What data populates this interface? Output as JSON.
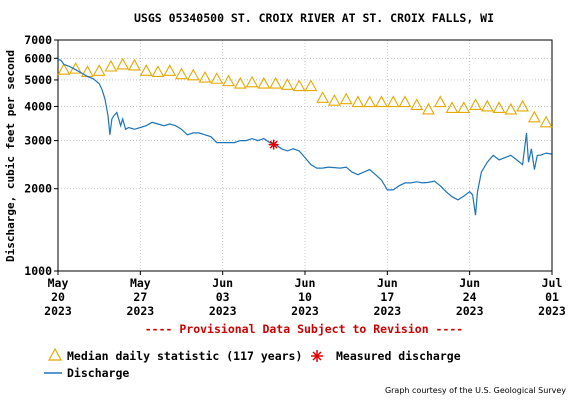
{
  "chart_data": {
    "type": "line",
    "title": "USGS 05340500 ST. CROIX RIVER AT ST. CROIX FALLS, WI",
    "ylabel": "Discharge, cubic feet per second",
    "xlabel": "",
    "y_scale": "log",
    "ylim": [
      1000,
      7000
    ],
    "xlim": [
      "2023-05-20",
      "2023-07-01"
    ],
    "y_ticks": [
      {
        "value": 1000,
        "label": "1000"
      },
      {
        "value": 2000,
        "label": "2000"
      },
      {
        "value": 3000,
        "label": "3000"
      },
      {
        "value": 4000,
        "label": "4000"
      },
      {
        "value": 5000,
        "label": "5000"
      },
      {
        "value": 6000,
        "label": "6000"
      },
      {
        "value": 7000,
        "label": "7000"
      }
    ],
    "x_ticks": [
      {
        "date": "2023-05-20",
        "label": [
          "May",
          "20",
          "2023"
        ]
      },
      {
        "date": "2023-05-27",
        "label": [
          "May",
          "27",
          "2023"
        ]
      },
      {
        "date": "2023-06-03",
        "label": [
          "Jun",
          "03",
          "2023"
        ]
      },
      {
        "date": "2023-06-10",
        "label": [
          "Jun",
          "10",
          "2023"
        ]
      },
      {
        "date": "2023-06-17",
        "label": [
          "Jun",
          "17",
          "2023"
        ]
      },
      {
        "date": "2023-06-24",
        "label": [
          "Jun",
          "24",
          "2023"
        ]
      },
      {
        "date": "2023-07-01",
        "label": [
          "Jul",
          "01",
          "2023"
        ]
      }
    ],
    "grid": true,
    "series": [
      {
        "name": "Median daily statistic (117 years)",
        "kind": "triangle-markers",
        "color": "#e6a800",
        "points": [
          [
            "2023-05-20",
            5450
          ],
          [
            "2023-05-21",
            5500
          ],
          [
            "2023-05-22",
            5350
          ],
          [
            "2023-05-23",
            5400
          ],
          [
            "2023-05-24",
            5600
          ],
          [
            "2023-05-25",
            5700
          ],
          [
            "2023-05-26",
            5650
          ],
          [
            "2023-05-27",
            5400
          ],
          [
            "2023-05-28",
            5350
          ],
          [
            "2023-05-29",
            5400
          ],
          [
            "2023-05-30",
            5250
          ],
          [
            "2023-05-31",
            5200
          ],
          [
            "2023-06-01",
            5100
          ],
          [
            "2023-06-02",
            5050
          ],
          [
            "2023-06-03",
            4950
          ],
          [
            "2023-06-04",
            4850
          ],
          [
            "2023-06-05",
            4900
          ],
          [
            "2023-06-06",
            4850
          ],
          [
            "2023-06-07",
            4850
          ],
          [
            "2023-06-08",
            4800
          ],
          [
            "2023-06-09",
            4750
          ],
          [
            "2023-06-10",
            4750
          ],
          [
            "2023-06-11",
            4300
          ],
          [
            "2023-06-12",
            4200
          ],
          [
            "2023-06-13",
            4250
          ],
          [
            "2023-06-14",
            4150
          ],
          [
            "2023-06-15",
            4150
          ],
          [
            "2023-06-16",
            4150
          ],
          [
            "2023-06-17",
            4150
          ],
          [
            "2023-06-18",
            4150
          ],
          [
            "2023-06-19",
            4050
          ],
          [
            "2023-06-20",
            3900
          ],
          [
            "2023-06-21",
            4150
          ],
          [
            "2023-06-22",
            3950
          ],
          [
            "2023-06-23",
            3950
          ],
          [
            "2023-06-24",
            4050
          ],
          [
            "2023-06-25",
            4000
          ],
          [
            "2023-06-26",
            3950
          ],
          [
            "2023-06-27",
            3900
          ],
          [
            "2023-06-28",
            4000
          ],
          [
            "2023-06-29",
            3650
          ],
          [
            "2023-06-30",
            3500
          ]
        ]
      },
      {
        "name": "Measured discharge",
        "kind": "star-marker",
        "color": "#e00000",
        "points": [
          [
            "2023-06-07T08:00",
            2900
          ]
        ]
      },
      {
        "name": "Discharge",
        "kind": "line",
        "color": "#1e74b8",
        "points": [
          [
            "2023-05-20T00:00",
            5950
          ],
          [
            "2023-05-20T06:00",
            5900
          ],
          [
            "2023-05-20T12:00",
            5700
          ],
          [
            "2023-05-21T00:00",
            5600
          ],
          [
            "2023-05-21T12:00",
            5450
          ],
          [
            "2023-05-22T00:00",
            5300
          ],
          [
            "2023-05-22T12:00",
            5150
          ],
          [
            "2023-05-23T00:00",
            5050
          ],
          [
            "2023-05-23T12:00",
            4850
          ],
          [
            "2023-05-23T18:00",
            4600
          ],
          [
            "2023-05-24T00:00",
            4250
          ],
          [
            "2023-05-24T06:00",
            3700
          ],
          [
            "2023-05-24T10:00",
            3150
          ],
          [
            "2023-05-24T14:00",
            3600
          ],
          [
            "2023-05-24T18:00",
            3700
          ],
          [
            "2023-05-25T00:00",
            3800
          ],
          [
            "2023-05-25T08:00",
            3400
          ],
          [
            "2023-05-25T12:00",
            3600
          ],
          [
            "2023-05-25T18:00",
            3300
          ],
          [
            "2023-05-26T00:00",
            3350
          ],
          [
            "2023-05-26T12:00",
            3300
          ],
          [
            "2023-05-27T00:00",
            3350
          ],
          [
            "2023-05-27T12:00",
            3400
          ],
          [
            "2023-05-28T00:00",
            3500
          ],
          [
            "2023-05-28T12:00",
            3450
          ],
          [
            "2023-05-29T00:00",
            3400
          ],
          [
            "2023-05-29T12:00",
            3450
          ],
          [
            "2023-05-30T00:00",
            3400
          ],
          [
            "2023-05-30T12:00",
            3300
          ],
          [
            "2023-05-31T00:00",
            3150
          ],
          [
            "2023-05-31T12:00",
            3200
          ],
          [
            "2023-06-01T00:00",
            3200
          ],
          [
            "2023-06-01T12:00",
            3150
          ],
          [
            "2023-06-02T00:00",
            3100
          ],
          [
            "2023-06-02T12:00",
            2950
          ],
          [
            "2023-06-03T00:00",
            2950
          ],
          [
            "2023-06-03T12:00",
            2950
          ],
          [
            "2023-06-04T00:00",
            2950
          ],
          [
            "2023-06-04T12:00",
            3000
          ],
          [
            "2023-06-05T00:00",
            3000
          ],
          [
            "2023-06-05T12:00",
            3050
          ],
          [
            "2023-06-06T00:00",
            3000
          ],
          [
            "2023-06-06T12:00",
            3050
          ],
          [
            "2023-06-07T00:00",
            2950
          ],
          [
            "2023-06-07T12:00",
            2900
          ],
          [
            "2023-06-08T00:00",
            2800
          ],
          [
            "2023-06-08T12:00",
            2750
          ],
          [
            "2023-06-09T00:00",
            2800
          ],
          [
            "2023-06-09T12:00",
            2750
          ],
          [
            "2023-06-10T00:00",
            2600
          ],
          [
            "2023-06-10T12:00",
            2450
          ],
          [
            "2023-06-11T00:00",
            2380
          ],
          [
            "2023-06-11T12:00",
            2380
          ],
          [
            "2023-06-12T00:00",
            2400
          ],
          [
            "2023-06-12T12:00",
            2390
          ],
          [
            "2023-06-13T00:00",
            2380
          ],
          [
            "2023-06-13T12:00",
            2400
          ],
          [
            "2023-06-14T00:00",
            2300
          ],
          [
            "2023-06-14T12:00",
            2250
          ],
          [
            "2023-06-15T00:00",
            2300
          ],
          [
            "2023-06-15T12:00",
            2350
          ],
          [
            "2023-06-16T00:00",
            2250
          ],
          [
            "2023-06-16T12:00",
            2150
          ],
          [
            "2023-06-17T00:00",
            1980
          ],
          [
            "2023-06-17T12:00",
            1980
          ],
          [
            "2023-06-18T00:00",
            2050
          ],
          [
            "2023-06-18T12:00",
            2100
          ],
          [
            "2023-06-19T00:00",
            2100
          ],
          [
            "2023-06-19T12:00",
            2120
          ],
          [
            "2023-06-20T00:00",
            2100
          ],
          [
            "2023-06-20T12:00",
            2110
          ],
          [
            "2023-06-21T00:00",
            2130
          ],
          [
            "2023-06-21T12:00",
            2050
          ],
          [
            "2023-06-22T00:00",
            1950
          ],
          [
            "2023-06-22T12:00",
            1870
          ],
          [
            "2023-06-23T00:00",
            1820
          ],
          [
            "2023-06-23T12:00",
            1880
          ],
          [
            "2023-06-24T00:00",
            1950
          ],
          [
            "2023-06-24T06:00",
            1900
          ],
          [
            "2023-06-24T12:00",
            1600
          ],
          [
            "2023-06-24T16:00",
            1950
          ],
          [
            "2023-06-25T00:00",
            2300
          ],
          [
            "2023-06-25T12:00",
            2500
          ],
          [
            "2023-06-26T00:00",
            2650
          ],
          [
            "2023-06-26T12:00",
            2550
          ],
          [
            "2023-06-27T00:00",
            2600
          ],
          [
            "2023-06-27T12:00",
            2650
          ],
          [
            "2023-06-28T00:00",
            2550
          ],
          [
            "2023-06-28T12:00",
            2450
          ],
          [
            "2023-06-28T20:00",
            3200
          ],
          [
            "2023-06-29T00:00",
            2500
          ],
          [
            "2023-06-29T06:00",
            2800
          ],
          [
            "2023-06-29T12:00",
            2350
          ],
          [
            "2023-06-29T18:00",
            2650
          ],
          [
            "2023-06-30T00:00",
            2650
          ],
          [
            "2023-06-30T12:00",
            2700
          ],
          [
            "2023-06-30T23:00",
            2680
          ]
        ]
      }
    ],
    "legend_placement": "bottom",
    "annotations": {
      "provisional": "---- Provisional Data Subject to Revision ----",
      "credit": "Graph courtesy of the U.S. Geological Survey"
    }
  },
  "colors": {
    "median": "#e6a800",
    "measured": "#e00000",
    "discharge": "#1e74b8",
    "provisional": "#cc0000",
    "grid": "#bbbbbb"
  }
}
